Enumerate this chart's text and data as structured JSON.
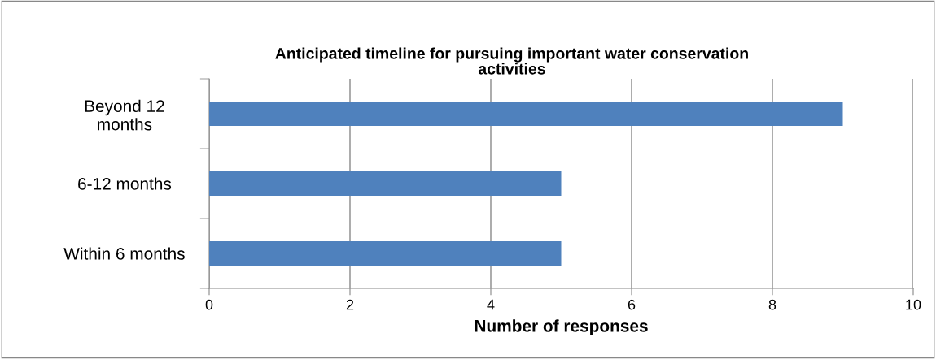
{
  "chart_data": {
    "type": "bar",
    "orientation": "horizontal",
    "title": "Anticipated timeline for pursuing important water conservation\nactivities",
    "xlabel": "Number of responses",
    "categories": [
      "Beyond 12\nmonths",
      "6-12 months",
      "Within 6 months"
    ],
    "values": [
      9,
      5,
      5
    ],
    "color": "#4f81bd",
    "xlim": [
      0,
      10
    ],
    "xticks": [
      0,
      2,
      4,
      6,
      8,
      10
    ],
    "grid": "x",
    "legend": false
  }
}
